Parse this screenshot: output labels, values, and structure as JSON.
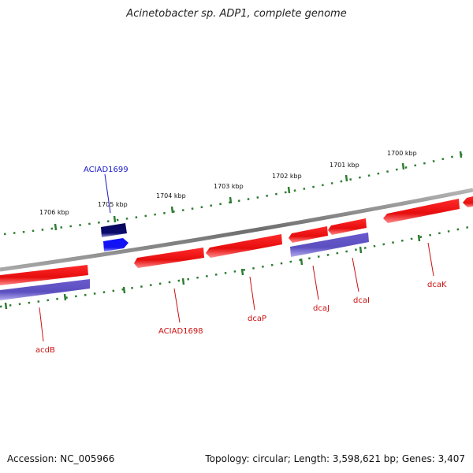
{
  "title": "Acinetobacter sp. ADP1, complete genome",
  "footer": {
    "accession": "Accession: NC_005966",
    "summary": "Topology: circular; Length: 3,598,621 bp; Genes: 3,407"
  },
  "colors": {
    "backbone": "#8a8a8a",
    "ticks": "#2e7d32",
    "gene_forward": "#e01010",
    "gene_reverse": "#6f5fd0",
    "gene_selected_dark": "#0b0b6e",
    "gene_selected_light": "#1414ff",
    "label_red": "#cc1111",
    "label_blue": "#1a1acc"
  },
  "scale_labels": [
    "1706 kbp",
    "1705 kbp",
    "1704 kbp",
    "1703 kbp",
    "1702 kbp",
    "1701 kbp",
    "1700 kbp"
  ],
  "gene_labels": [
    {
      "name": "ACIAD1699",
      "color": "blue"
    },
    {
      "name": "acdB",
      "color": "red"
    },
    {
      "name": "ACIAD1698",
      "color": "red"
    },
    {
      "name": "dcaP",
      "color": "red"
    },
    {
      "name": "dcaJ",
      "color": "red"
    },
    {
      "name": "dcaI",
      "color": "red"
    },
    {
      "name": "dcaK",
      "color": "red"
    }
  ]
}
